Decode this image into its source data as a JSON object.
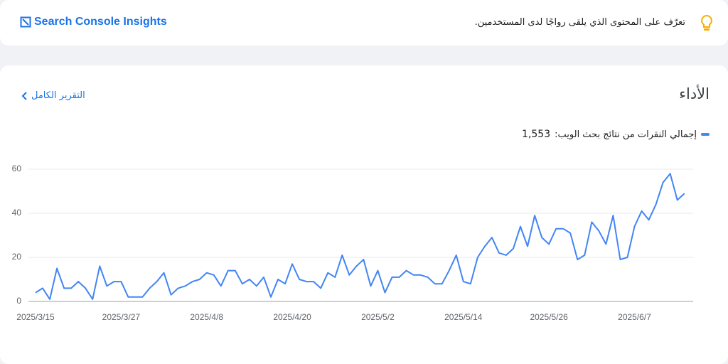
{
  "header": {
    "brand": "Search Console Insights",
    "tip": "تعرّف على المحتوى الذي يلقى رواجًا لدى المستخدمين."
  },
  "card": {
    "title": "الأداء",
    "link": "التقرير الكامل"
  },
  "chart_data": {
    "type": "line",
    "categories": [
      "2025/3/15",
      "2025/3/16",
      "2025/3/17",
      "2025/3/18",
      "2025/3/19",
      "2025/3/20",
      "2025/3/21",
      "2025/3/22",
      "2025/3/23",
      "2025/3/24",
      "2025/3/25",
      "2025/3/26",
      "2025/3/27",
      "2025/3/28",
      "2025/3/29",
      "2025/3/30",
      "2025/3/31",
      "2025/4/1",
      "2025/4/2",
      "2025/4/3",
      "2025/4/4",
      "2025/4/5",
      "2025/4/6",
      "2025/4/7",
      "2025/4/8",
      "2025/4/9",
      "2025/4/10",
      "2025/4/11",
      "2025/4/12",
      "2025/4/13",
      "2025/4/14",
      "2025/4/15",
      "2025/4/16",
      "2025/4/17",
      "2025/4/18",
      "2025/4/19",
      "2025/4/20",
      "2025/4/21",
      "2025/4/22",
      "2025/4/23",
      "2025/4/24",
      "2025/4/25",
      "2025/4/26",
      "2025/4/27",
      "2025/4/28",
      "2025/4/29",
      "2025/4/30",
      "2025/5/1",
      "2025/5/2",
      "2025/5/3",
      "2025/5/4",
      "2025/5/5",
      "2025/5/6",
      "2025/5/7",
      "2025/5/8",
      "2025/5/9",
      "2025/5/10",
      "2025/5/11",
      "2025/5/12",
      "2025/5/13",
      "2025/5/14",
      "2025/5/15",
      "2025/5/16",
      "2025/5/17",
      "2025/5/18",
      "2025/5/19",
      "2025/5/20",
      "2025/5/21",
      "2025/5/22",
      "2025/5/23",
      "2025/5/24",
      "2025/5/25",
      "2025/5/26",
      "2025/5/27",
      "2025/5/28",
      "2025/5/29",
      "2025/5/30",
      "2025/5/31",
      "2025/6/1",
      "2025/6/2",
      "2025/6/3",
      "2025/6/4",
      "2025/6/5",
      "2025/6/6",
      "2025/6/7",
      "2025/6/8",
      "2025/6/9",
      "2025/6/10",
      "2025/6/11",
      "2025/6/12",
      "2025/6/13",
      "2025/6/14"
    ],
    "xticks": [
      "2025/3/15",
      "2025/3/27",
      "2025/4/8",
      "2025/4/20",
      "2025/5/2",
      "2025/5/14",
      "2025/5/26",
      "2025/6/7"
    ],
    "series": [
      {
        "name": "إجمالي النقرات من نتائج بحث الويب:",
        "color": "#4285f4",
        "values": [
          4,
          6,
          1,
          15,
          6,
          6,
          9,
          6,
          1,
          16,
          7,
          9,
          9,
          2,
          2,
          2,
          6,
          9,
          13,
          3,
          6,
          7,
          9,
          10,
          13,
          12,
          7,
          14,
          14,
          8,
          10,
          7,
          11,
          2,
          10,
          8,
          17,
          10,
          9,
          9,
          6,
          13,
          11,
          21,
          12,
          16,
          19,
          7,
          14,
          4,
          11,
          11,
          14,
          12,
          12,
          11,
          8,
          8,
          14,
          21,
          9,
          8,
          20,
          25,
          29,
          22,
          21,
          24,
          34,
          25,
          39,
          29,
          26,
          33,
          33,
          31,
          19,
          21,
          36,
          32,
          26,
          39,
          19,
          20,
          34,
          41,
          37,
          44,
          54,
          58,
          46,
          49
        ]
      }
    ],
    "total": {
      "value": 1553,
      "label": "1,553"
    },
    "ylim": [
      0,
      60
    ],
    "yticks": [
      0,
      20,
      40,
      60
    ],
    "grid": true
  }
}
